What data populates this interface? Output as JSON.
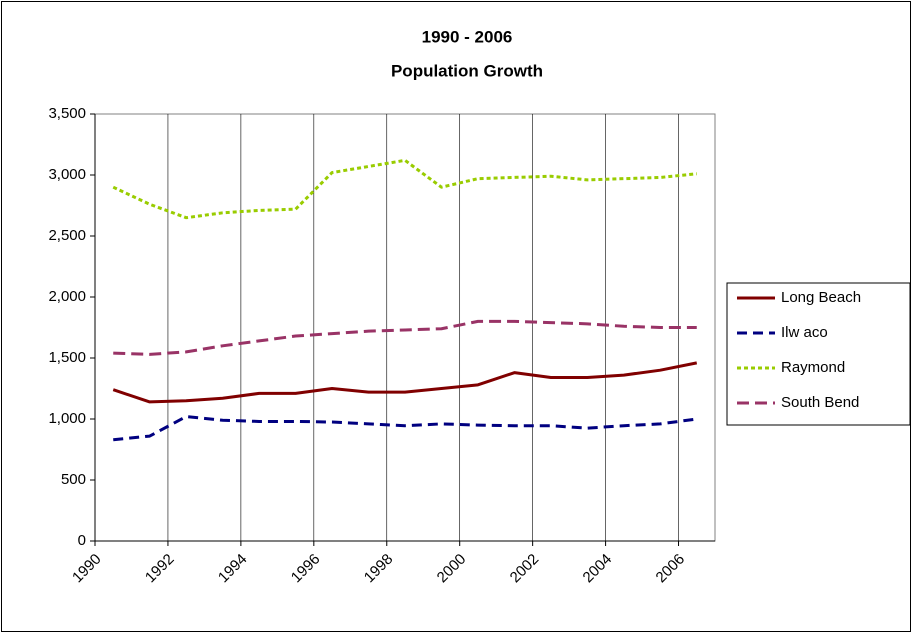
{
  "chart_data": {
    "type": "line",
    "title": [
      "1990 - 2006",
      "Population Growth"
    ],
    "x": [
      1990.5,
      1991.5,
      1992.5,
      1993.5,
      1994.5,
      1995.5,
      1996.5,
      1997.5,
      1998.5,
      1999.5,
      2000.5,
      2001.5,
      2002.5,
      2003.5,
      2004.5,
      2005.5,
      2006.5
    ],
    "xlim": [
      1990,
      2007
    ],
    "xticks": [
      1990,
      1992,
      1994,
      1996,
      1998,
      2000,
      2002,
      2004,
      2006
    ],
    "ylim": [
      0,
      3500
    ],
    "yticks": [
      0,
      500,
      {
        "value": 1000,
        "label": "1,000"
      },
      {
        "value": 1500,
        "label": "1,500"
      },
      {
        "value": 2000,
        "label": "2,000"
      },
      {
        "value": 2500,
        "label": "2,500"
      },
      {
        "value": 3000,
        "label": "3,000"
      },
      {
        "value": 3500,
        "label": "3,500"
      }
    ],
    "grid": true,
    "legend": "right",
    "series": [
      {
        "name": "Long Beach",
        "color": "#800000",
        "dash": "none",
        "values": [
          1240,
          1140,
          1150,
          1170,
          1210,
          1210,
          1250,
          1220,
          1220,
          1250,
          1280,
          1380,
          1340,
          1340,
          1360,
          1400,
          1460
        ]
      },
      {
        "name": "Ilw aco",
        "color": "#000080",
        "dash": "10,6",
        "values": [
          830,
          860,
          1020,
          990,
          980,
          980,
          975,
          960,
          945,
          960,
          950,
          945,
          945,
          925,
          945,
          960,
          1000
        ]
      },
      {
        "name": "Raymond",
        "color": "#99cc00",
        "dash": "4,3",
        "values": [
          2900,
          2760,
          2650,
          2690,
          2710,
          2720,
          3020,
          3070,
          3120,
          2900,
          2970,
          2980,
          2990,
          2960,
          2970,
          2980,
          3010
        ]
      },
      {
        "name": "South Bend",
        "color": "#993366",
        "dash": "12,6",
        "values": [
          1540,
          1530,
          1550,
          1600,
          1640,
          1680,
          1700,
          1720,
          1730,
          1740,
          1800,
          1800,
          1790,
          1780,
          1760,
          1750,
          1750
        ]
      }
    ]
  }
}
